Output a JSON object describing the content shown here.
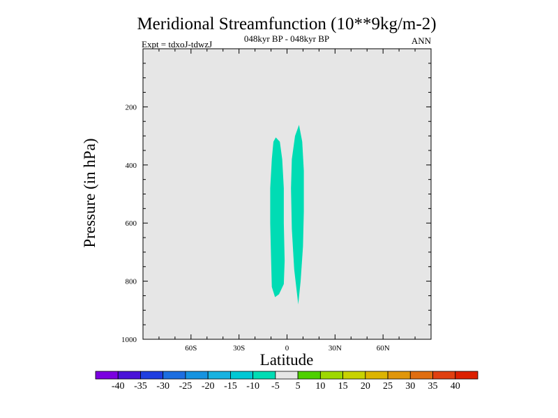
{
  "chart_data": {
    "type": "contour",
    "title": "Meridional Streamfunction (10**9kg/m-2)",
    "subtitle_center": "048kyr BP - 048kyr BP",
    "subtitle_left": "Expt = tdxoJ-tdwzJ",
    "subtitle_right": "ANN",
    "xlabel": "Latitude",
    "ylabel": "Pressure (in hPa)",
    "xlim": [
      -90,
      90
    ],
    "ylim": [
      1000,
      0
    ],
    "x_ticks": [
      {
        "value": -60,
        "label": "60S"
      },
      {
        "value": -30,
        "label": "30S"
      },
      {
        "value": 0,
        "label": "0"
      },
      {
        "value": 30,
        "label": "30N"
      },
      {
        "value": 60,
        "label": "60N"
      }
    ],
    "y_ticks": [
      {
        "value": 200,
        "label": "200"
      },
      {
        "value": 400,
        "label": "400"
      },
      {
        "value": 600,
        "label": "600"
      },
      {
        "value": 800,
        "label": "800"
      },
      {
        "value": 1000,
        "label": "1000"
      }
    ],
    "background_color": "#e6e6e6",
    "regions": [
      {
        "level": "-10 to -5",
        "color": "#00dcb4",
        "outline": [
          [
            -7,
            305
          ],
          [
            -4.5,
            320
          ],
          [
            -3,
            380
          ],
          [
            -2,
            480
          ],
          [
            -2,
            600
          ],
          [
            -1.5,
            730
          ],
          [
            -2,
            810
          ],
          [
            -5,
            845
          ],
          [
            -7.5,
            855
          ],
          [
            -9.5,
            820
          ],
          [
            -10,
            720
          ],
          [
            -10.5,
            600
          ],
          [
            -10.5,
            480
          ],
          [
            -9.5,
            380
          ],
          [
            -8.5,
            320
          ]
        ]
      },
      {
        "level": "-10 to -5",
        "color": "#00dcb4",
        "outline": [
          [
            7.5,
            262
          ],
          [
            9.5,
            320
          ],
          [
            10.5,
            420
          ],
          [
            10.5,
            560
          ],
          [
            10,
            680
          ],
          [
            8.5,
            800
          ],
          [
            7,
            880
          ],
          [
            4.5,
            760
          ],
          [
            3,
            620
          ],
          [
            2.5,
            480
          ],
          [
            3,
            380
          ],
          [
            5,
            300
          ]
        ]
      }
    ],
    "colorbar": {
      "levels": [
        "-40",
        "-35",
        "-30",
        "-25",
        "-20",
        "-15",
        "-10",
        "-5",
        "5",
        "10",
        "15",
        "20",
        "25",
        "30",
        "35",
        "40"
      ],
      "colors": [
        "#7b00e0",
        "#4a12d8",
        "#1f3ee0",
        "#1c6ee0",
        "#1693e0",
        "#18b2e0",
        "#00c8d4",
        "#00dcb4",
        "#e6e6e6",
        "#4ed000",
        "#9ed800",
        "#c8d200",
        "#dcb400",
        "#e0960a",
        "#e06e10",
        "#e04010",
        "#dc2000"
      ]
    }
  }
}
